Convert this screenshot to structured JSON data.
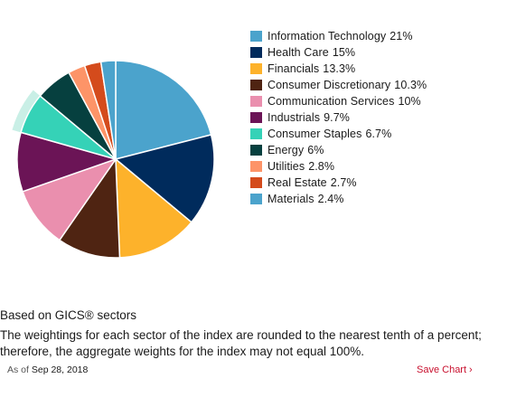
{
  "chart_data": {
    "type": "pie",
    "slices": [
      {
        "label": "Information Technology",
        "value": 21,
        "display": "21%",
        "color": "#4ba3cc"
      },
      {
        "label": "Health Care",
        "value": 15,
        "display": "15%",
        "color": "#002b5c"
      },
      {
        "label": "Financials",
        "value": 13.3,
        "display": "13.3%",
        "color": "#fdb22b"
      },
      {
        "label": "Consumer Discretionary",
        "value": 10.3,
        "display": "10.3%",
        "color": "#4f2412"
      },
      {
        "label": "Communication Services",
        "value": 10,
        "display": "10%",
        "color": "#ea8fae"
      },
      {
        "label": "Industrials",
        "value": 9.7,
        "display": "9.7%",
        "color": "#6b1456"
      },
      {
        "label": "Consumer Staples",
        "value": 6.7,
        "display": "6.7%",
        "color": "#35d2b7"
      },
      {
        "label": "Energy",
        "value": 6,
        "display": "6%",
        "color": "#06403f"
      },
      {
        "label": "Utilities",
        "value": 2.8,
        "display": "2.8%",
        "color": "#fd9468"
      },
      {
        "label": "Real Estate",
        "value": 2.7,
        "display": "2.7%",
        "color": "#d44b1c"
      },
      {
        "label": "Materials",
        "value": 2.4,
        "display": "2.4%",
        "color": "#4ba3cc"
      }
    ],
    "highlighted_slice": "Consumer Staples",
    "highlight_color": "#c9efe6",
    "legend_position": "right"
  },
  "footer": {
    "basis": "Based on GICS® sectors",
    "note": "The weightings for each sector of the index are rounded to the nearest tenth of a percent; therefore, the aggregate weights for the index may not equal 100%.",
    "as_of_label": "As of",
    "as_of_date": "Sep 28, 2018",
    "save_label": "Save Chart",
    "save_icon": "chevron-right-icon",
    "save_color": "#c8102e"
  }
}
